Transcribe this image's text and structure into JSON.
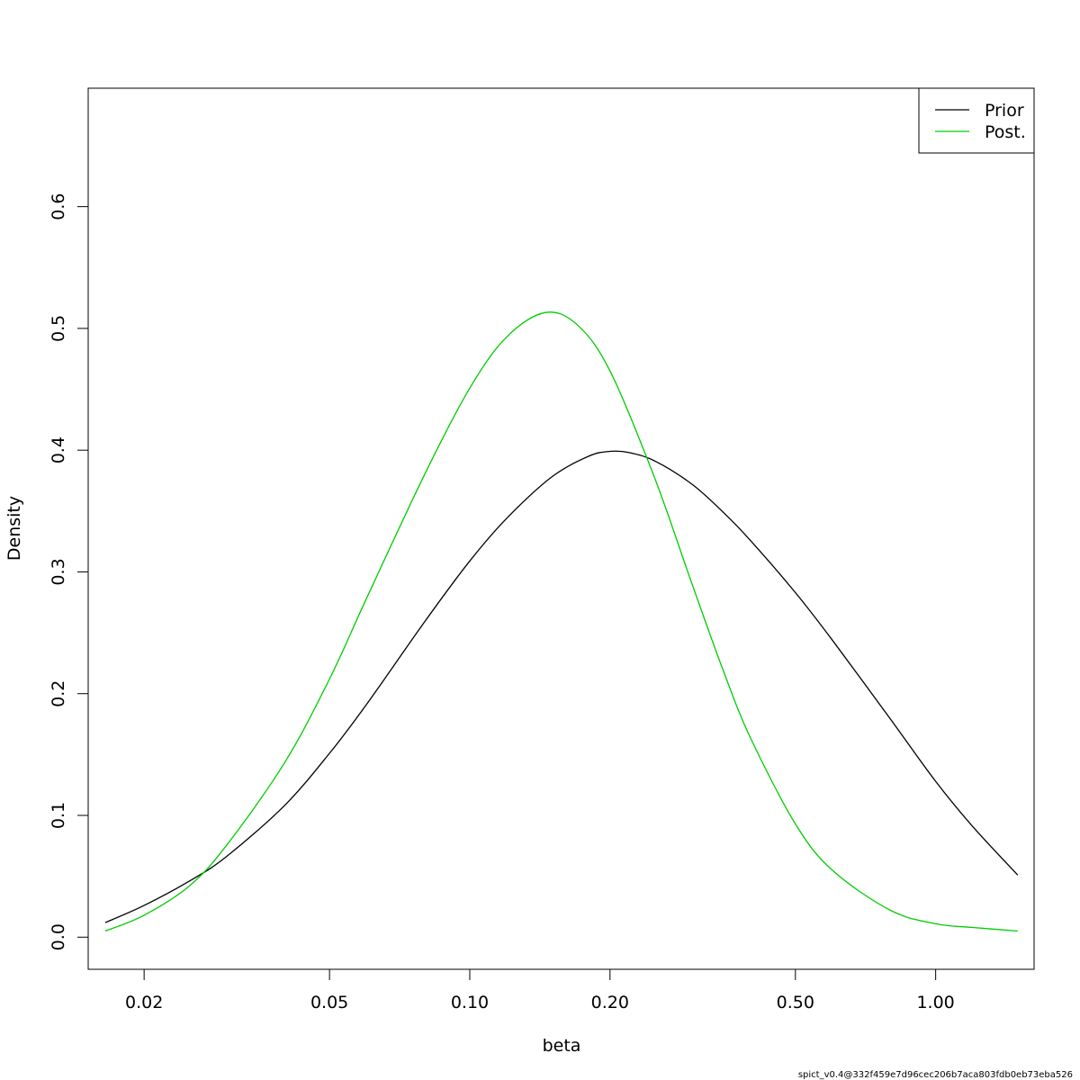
{
  "chart_data": {
    "type": "line",
    "xlabel": "beta",
    "ylabel": "Density",
    "x_scale": "log",
    "xlim": [
      0.01517,
      1.6266
    ],
    "ylim": [
      -0.0264,
      0.6973
    ],
    "x_ticks": [
      0.02,
      0.05,
      0.1,
      0.2,
      0.5,
      1.0
    ],
    "x_tick_labels": [
      "0.02",
      "0.05",
      "0.10",
      "0.20",
      "0.50",
      "1.00"
    ],
    "y_ticks": [
      0.0,
      0.1,
      0.2,
      0.3,
      0.4,
      0.5,
      0.6
    ],
    "y_tick_labels": [
      "0.0",
      "0.1",
      "0.2",
      "0.3",
      "0.4",
      "0.5",
      "0.6"
    ],
    "grid": false,
    "legend_position": "top-right",
    "series": [
      {
        "name": "Prior",
        "color": "#000000",
        "x": [
          0.0165,
          0.02,
          0.025,
          0.03,
          0.04,
          0.05,
          0.06,
          0.08,
          0.1,
          0.12,
          0.15,
          0.18,
          0.2,
          0.22,
          0.25,
          0.3,
          0.35,
          0.4,
          0.5,
          0.6,
          0.8,
          1.0,
          1.2,
          1.5
        ],
        "y": [
          0.012,
          0.026,
          0.046,
          0.066,
          0.108,
          0.151,
          0.191,
          0.259,
          0.309,
          0.344,
          0.378,
          0.395,
          0.399,
          0.398,
          0.391,
          0.372,
          0.349,
          0.326,
          0.283,
          0.244,
          0.179,
          0.128,
          0.091,
          0.051
        ]
      },
      {
        "name": "Post.",
        "color": "#00cd00",
        "x": [
          0.0165,
          0.02,
          0.025,
          0.03,
          0.04,
          0.05,
          0.06,
          0.08,
          0.1,
          0.12,
          0.145,
          0.17,
          0.2,
          0.25,
          0.3,
          0.35,
          0.4,
          0.5,
          0.6,
          0.8,
          1.0,
          1.2,
          1.5
        ],
        "y": [
          0.005,
          0.018,
          0.042,
          0.075,
          0.143,
          0.212,
          0.278,
          0.38,
          0.451,
          0.493,
          0.513,
          0.503,
          0.465,
          0.376,
          0.29,
          0.219,
          0.164,
          0.093,
          0.055,
          0.022,
          0.011,
          0.008,
          0.005
        ]
      }
    ]
  },
  "footer": {
    "caption": "spict_v0.4@332f459e7d96cec206b7aca803fdb0eb73eba526"
  }
}
